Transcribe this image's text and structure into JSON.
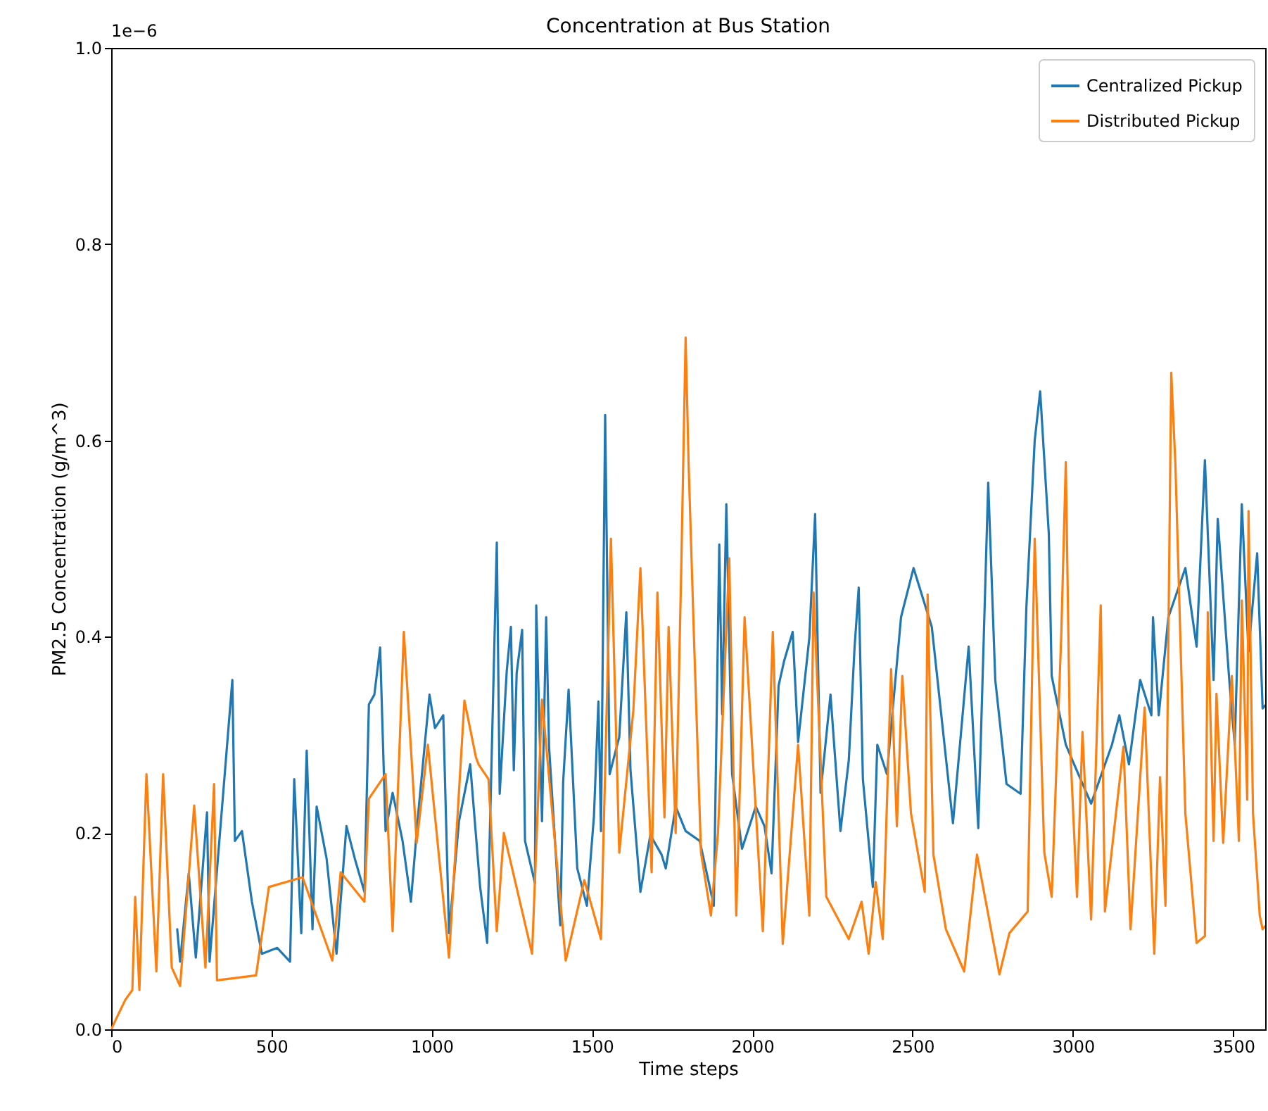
{
  "chart_data": {
    "type": "line",
    "title": "Concentration at Bus Station",
    "xlabel": "Time steps",
    "ylabel": "PM2.5 Concentration (g/m^3)",
    "annotations": [
      "1e−6"
    ],
    "legend": "top right",
    "xlim": [
      0,
      3600
    ],
    "xticks": [
      0,
      500,
      1000,
      1500,
      2000,
      2500,
      3000,
      3500
    ],
    "ylim": [
      0,
      1
    ],
    "yticks": [
      {
        "value": 0,
        "label": "0.0"
      },
      0.2,
      0.4,
      0.6,
      0.8,
      {
        "value": 1,
        "label": "1.0"
      }
    ],
    "series": [
      {
        "name": "Centralized Pickup",
        "color": "#1f77b4",
        "x": [
          206,
          215,
          242,
          264,
          299,
          307,
          378,
          386,
          408,
          439,
          470,
          518,
          558,
          571,
          593,
          610,
          628,
          641,
          672,
          703,
          734,
          760,
          790,
          804,
          821,
          839,
          856,
          878,
          909,
          935,
          957,
          993,
          1010,
          1036,
          1054,
          1085,
          1120,
          1151,
          1173,
          1203,
          1212,
          1234,
          1247,
          1256,
          1265,
          1282,
          1291,
          1322,
          1326,
          1344,
          1357,
          1366,
          1401,
          1410,
          1427,
          1454,
          1484,
          1506,
          1520,
          1528,
          1541,
          1555,
          1585,
          1607,
          1620,
          1651,
          1682,
          1717,
          1730,
          1761,
          1792,
          1836,
          1880,
          1897,
          1906,
          1919,
          1937,
          1968,
          2011,
          2038,
          2060,
          2082,
          2099,
          2126,
          2143,
          2178,
          2196,
          2213,
          2244,
          2275,
          2301,
          2319,
          2332,
          2345,
          2376,
          2390,
          2420,
          2464,
          2503,
          2560,
          2626,
          2675,
          2705,
          2736,
          2758,
          2793,
          2837,
          2855,
          2881,
          2898,
          2925,
          2934,
          2978,
          3004,
          3057,
          3122,
          3145,
          3175,
          3210,
          3245,
          3250,
          3268,
          3298,
          3351,
          3386,
          3412,
          3439,
          3452,
          3487,
          3505,
          3527,
          3548,
          3575,
          3592,
          3600
        ],
        "values": [
          0.102,
          0.069,
          0.159,
          0.073,
          0.221,
          0.069,
          0.356,
          0.192,
          0.202,
          0.13,
          0.077,
          0.083,
          0.069,
          0.255,
          0.098,
          0.284,
          0.102,
          0.227,
          0.174,
          0.077,
          0.207,
          0.174,
          0.14,
          0.331,
          0.341,
          0.389,
          0.202,
          0.241,
          0.192,
          0.13,
          0.217,
          0.341,
          0.307,
          0.32,
          0.098,
          0.212,
          0.27,
          0.145,
          0.088,
          0.496,
          0.24,
          0.365,
          0.41,
          0.264,
          0.363,
          0.407,
          0.192,
          0.149,
          0.432,
          0.212,
          0.42,
          0.288,
          0.106,
          0.252,
          0.346,
          0.164,
          0.126,
          0.217,
          0.334,
          0.202,
          0.626,
          0.26,
          0.298,
          0.425,
          0.264,
          0.14,
          0.198,
          0.178,
          0.164,
          0.227,
          0.202,
          0.192,
          0.126,
          0.494,
          0.321,
          0.535,
          0.26,
          0.184,
          0.227,
          0.207,
          0.159,
          0.35,
          0.375,
          0.405,
          0.293,
          0.399,
          0.525,
          0.241,
          0.341,
          0.202,
          0.274,
          0.389,
          0.45,
          0.255,
          0.145,
          0.29,
          0.26,
          0.42,
          0.47,
          0.41,
          0.21,
          0.39,
          0.205,
          0.557,
          0.356,
          0.25,
          0.24,
          0.43,
          0.6,
          0.65,
          0.505,
          0.36,
          0.29,
          0.27,
          0.23,
          0.29,
          0.32,
          0.27,
          0.356,
          0.32,
          0.42,
          0.32,
          0.42,
          0.47,
          0.39,
          0.58,
          0.356,
          0.52,
          0.36,
          0.29,
          0.535,
          0.385,
          0.485,
          0.327,
          0.33
        ]
      },
      {
        "name": "Distributed Pickup",
        "color": "#ff7f0e",
        "x": [
          0,
          44,
          66,
          75,
          88,
          110,
          141,
          162,
          189,
          215,
          259,
          294,
          321,
          330,
          452,
          492,
          597,
          690,
          716,
          790,
          804,
          856,
          878,
          913,
          953,
          988,
          1054,
          1102,
          1138,
          1146,
          1177,
          1203,
          1225,
          1313,
          1344,
          1418,
          1476,
          1528,
          1559,
          1585,
          1629,
          1651,
          1686,
          1704,
          1726,
          1739,
          1761,
          1779,
          1792,
          1801,
          1818,
          1840,
          1871,
          1893,
          1928,
          1950,
          1976,
          2033,
          2064,
          2095,
          2143,
          2178,
          2191,
          2231,
          2301,
          2341,
          2363,
          2385,
          2407,
          2433,
          2451,
          2468,
          2495,
          2538,
          2547,
          2565,
          2604,
          2661,
          2701,
          2771,
          2802,
          2859,
          2881,
          2911,
          2934,
          2964,
          2978,
          2991,
          3013,
          3030,
          3057,
          3087,
          3100,
          3158,
          3180,
          3224,
          3254,
          3272,
          3289,
          3307,
          3320,
          3351,
          3386,
          3412,
          3421,
          3439,
          3448,
          3469,
          3496,
          3518,
          3527,
          3544,
          3548,
          3562,
          3583,
          3592,
          3600
        ],
        "values": [
          0,
          0.03,
          0.04,
          0.135,
          0.04,
          0.26,
          0.059,
          0.26,
          0.063,
          0.044,
          0.228,
          0.063,
          0.25,
          0.05,
          0.055,
          0.145,
          0.155,
          0.07,
          0.16,
          0.13,
          0.235,
          0.26,
          0.1,
          0.405,
          0.19,
          0.29,
          0.073,
          0.335,
          0.277,
          0.27,
          0.255,
          0.1,
          0.2,
          0.077,
          0.336,
          0.07,
          0.152,
          0.092,
          0.5,
          0.18,
          0.325,
          0.47,
          0.16,
          0.445,
          0.216,
          0.41,
          0.2,
          0.48,
          0.705,
          0.58,
          0.4,
          0.18,
          0.116,
          0.2,
          0.48,
          0.116,
          0.42,
          0.1,
          0.405,
          0.087,
          0.29,
          0.116,
          0.445,
          0.135,
          0.092,
          0.13,
          0.077,
          0.15,
          0.092,
          0.367,
          0.207,
          0.36,
          0.22,
          0.14,
          0.443,
          0.178,
          0.102,
          0.059,
          0.178,
          0.056,
          0.098,
          0.12,
          0.5,
          0.18,
          0.135,
          0.403,
          0.578,
          0.293,
          0.135,
          0.303,
          0.112,
          0.432,
          0.12,
          0.288,
          0.102,
          0.328,
          0.077,
          0.257,
          0.126,
          0.669,
          0.575,
          0.22,
          0.088,
          0.095,
          0.425,
          0.192,
          0.342,
          0.19,
          0.36,
          0.192,
          0.437,
          0.234,
          0.528,
          0.22,
          0.116,
          0.102,
          0.105
        ]
      }
    ]
  }
}
